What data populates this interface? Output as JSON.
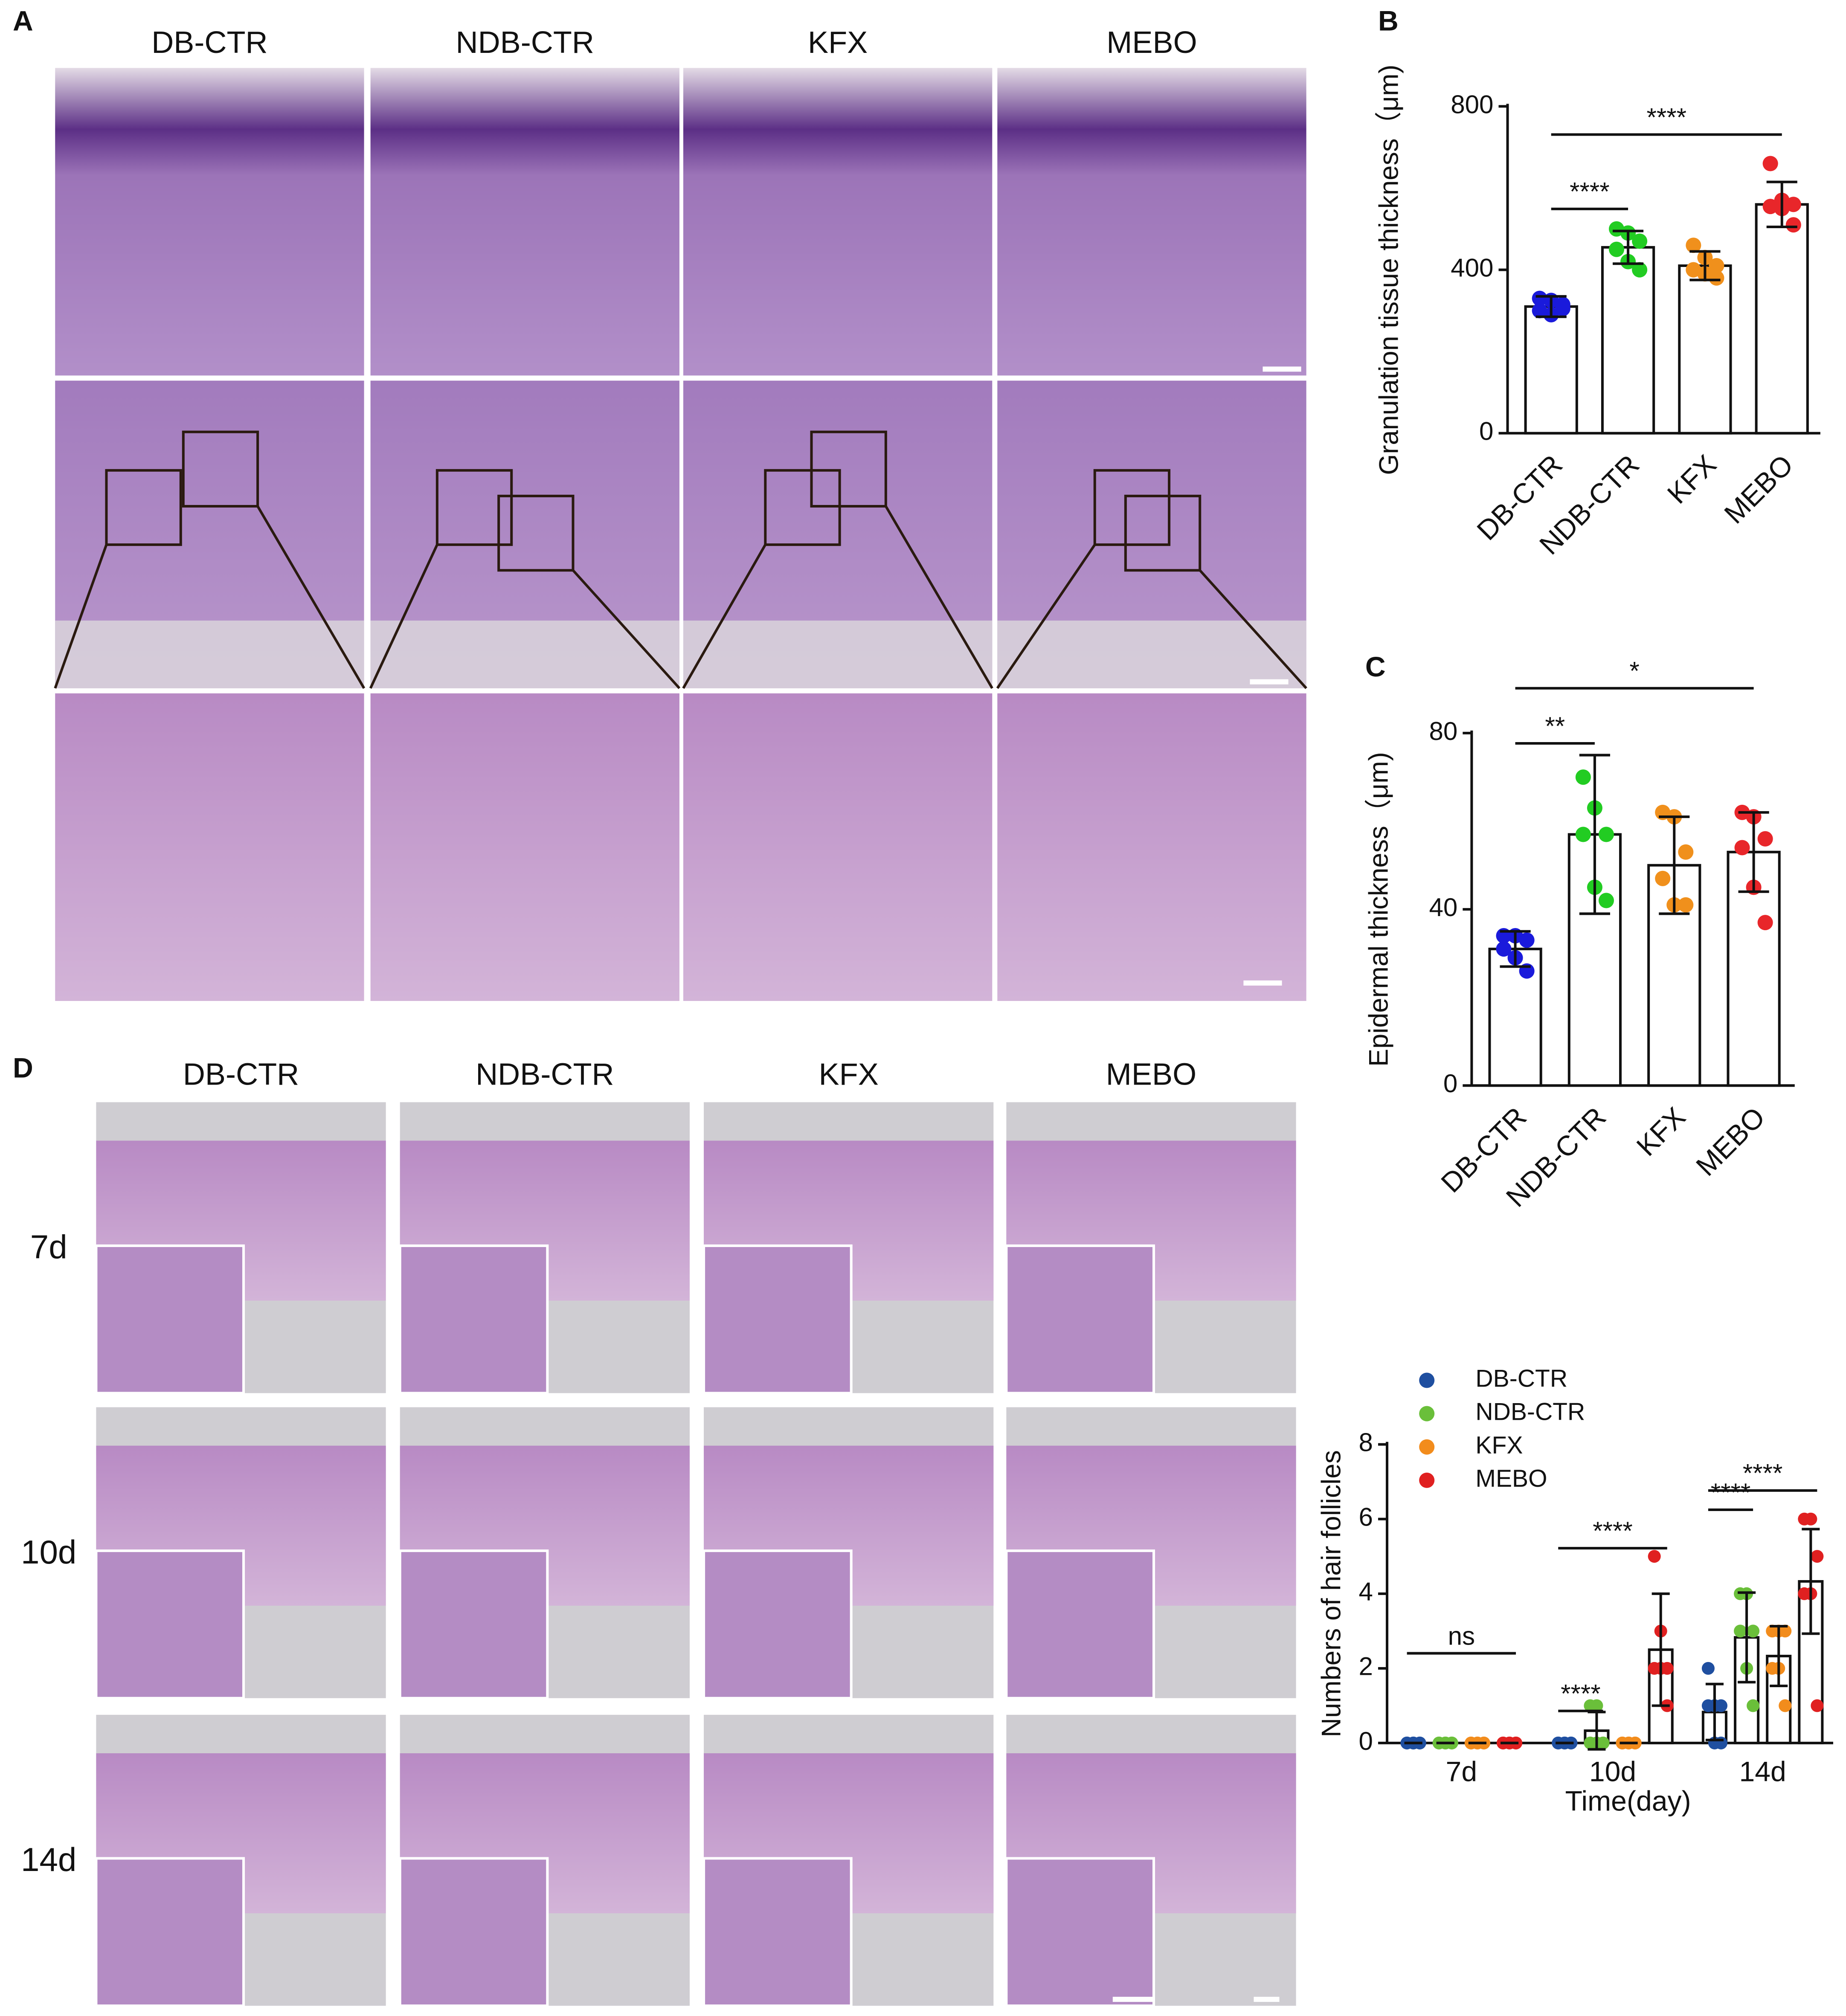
{
  "figure": {
    "panel_labels": [
      "A",
      "B",
      "C",
      "D"
    ],
    "a_columns": [
      "DB-CTR",
      "NDB-CTR",
      "KFX",
      "MEBO"
    ],
    "d_columns": [
      "DB-CTR",
      "NDB-CTR",
      "KFX",
      "MEBO"
    ],
    "d_rows": [
      "7d",
      "10d",
      "14d"
    ]
  },
  "chart_data": [
    {
      "type": "bar",
      "y_label": "Granulation tissue thickness（μm)",
      "categories": [
        "DB-CTR",
        "NDB-CTR",
        "KFX",
        "MEBO"
      ],
      "values": [
        310,
        455,
        410,
        560
      ],
      "errors": [
        25,
        40,
        35,
        55
      ],
      "colors": [
        "#1a1adb",
        "#22cc22",
        "#f0901c",
        "#e8262a"
      ],
      "points": [
        [
          330,
          325,
          305,
          300,
          290,
          315
        ],
        [
          500,
          490,
          470,
          450,
          420,
          400
        ],
        [
          460,
          430,
          410,
          400,
          390,
          380
        ],
        [
          660,
          570,
          560,
          555,
          550,
          510
        ]
      ],
      "ylim": [
        0,
        800
      ],
      "yticks": [
        0,
        400,
        800
      ],
      "annotations": [
        {
          "text": "****",
          "between": [
            "DB-CTR",
            "MEBO"
          ]
        },
        {
          "text": "****",
          "between": [
            "DB-CTR",
            "NDB-CTR"
          ]
        }
      ]
    },
    {
      "type": "bar",
      "y_label": "Epidermal thickness（μm)",
      "categories": [
        "DB-CTR",
        "NDB-CTR",
        "KFX",
        "MEBO"
      ],
      "values": [
        31,
        57,
        50,
        53
      ],
      "errors": [
        4,
        18,
        11,
        9
      ],
      "colors": [
        "#1a1adb",
        "#22cc22",
        "#f0901c",
        "#e8262a"
      ],
      "points": [
        [
          34,
          34,
          33,
          31,
          29,
          26
        ],
        [
          70,
          63,
          57,
          57,
          45,
          42
        ],
        [
          62,
          61,
          53,
          47,
          41,
          41
        ],
        [
          62,
          61,
          56,
          54,
          45,
          37
        ]
      ],
      "ylim": [
        0,
        80
      ],
      "yticks": [
        0,
        40,
        80
      ],
      "annotations": [
        {
          "text": "*",
          "between": [
            "DB-CTR",
            "MEBO"
          ]
        },
        {
          "text": "**",
          "between": [
            "DB-CTR",
            "NDB-CTR"
          ]
        }
      ]
    },
    {
      "type": "grouped_bar",
      "y_label": "Numbers of hair follicles",
      "x_label": "Time(day)",
      "categories": [
        "7d",
        "10d",
        "14d"
      ],
      "series": [
        {
          "name": "DB-CTR",
          "color": "#1f4fa0",
          "values": [
            0,
            0,
            0.83
          ],
          "errors": [
            0,
            0,
            0.75
          ],
          "points": [
            [
              0,
              0,
              0,
              0,
              0,
              0
            ],
            [
              0,
              0,
              0,
              0,
              0,
              0
            ],
            [
              2,
              1,
              1,
              1,
              0,
              0
            ]
          ]
        },
        {
          "name": "NDB-CTR",
          "color": "#6abf3a",
          "values": [
            0,
            0.33,
            2.83
          ],
          "errors": [
            0,
            0.5,
            1.2
          ],
          "points": [
            [
              0,
              0,
              0,
              0,
              0,
              0
            ],
            [
              1,
              1,
              0,
              0,
              0,
              0
            ],
            [
              4,
              4,
              3,
              3,
              2,
              1
            ]
          ]
        },
        {
          "name": "KFX",
          "color": "#f28c1c",
          "values": [
            0,
            0,
            2.33
          ],
          "errors": [
            0,
            0,
            0.8
          ],
          "points": [
            [
              0,
              0,
              0,
              0,
              0,
              0
            ],
            [
              0,
              0,
              0,
              0,
              0,
              0
            ],
            [
              3,
              3,
              3,
              2,
              2,
              1
            ]
          ]
        },
        {
          "name": "MEBO",
          "color": "#e02020",
          "values": [
            0,
            2.5,
            4.33
          ],
          "errors": [
            0,
            1.5,
            1.4
          ],
          "points": [
            [
              0,
              0,
              0,
              0,
              0,
              0
            ],
            [
              5,
              3,
              2,
              2,
              2,
              1
            ],
            [
              6,
              6,
              5,
              4,
              4,
              1
            ]
          ]
        }
      ],
      "ylim": [
        0,
        8
      ],
      "yticks": [
        0,
        2,
        4,
        6,
        8
      ],
      "annotations": [
        {
          "text": "ns",
          "category": "7d",
          "between": [
            "DB-CTR",
            "MEBO"
          ]
        },
        {
          "text": "****",
          "category": "10d",
          "between": [
            "DB-CTR",
            "NDB-CTR"
          ]
        },
        {
          "text": "****",
          "category": "10d",
          "between": [
            "DB-CTR",
            "MEBO"
          ]
        },
        {
          "text": "****",
          "category": "14d",
          "between": [
            "DB-CTR",
            "NDB-CTR"
          ]
        },
        {
          "text": "****",
          "category": "14d",
          "between": [
            "DB-CTR",
            "MEBO"
          ]
        }
      ]
    }
  ]
}
